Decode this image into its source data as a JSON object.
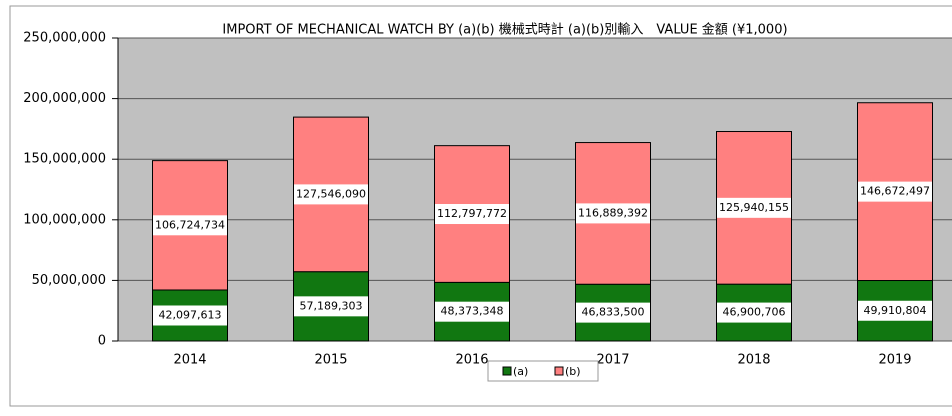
{
  "chart_data": {
    "type": "stacked_bar",
    "title": "IMPORT OF MECHANICAL WATCH BY (a)(b)  機械式時計 (a)(b)別輸入　VALUE 金額 (¥1,000)",
    "categories": [
      "2014",
      "2015",
      "2016",
      "2017",
      "2018",
      "2019"
    ],
    "series": [
      {
        "name": "(a)",
        "color": "#117711",
        "values": [
          42097613,
          57189303,
          48373348,
          46833500,
          46900706,
          49910804
        ],
        "value_labels": [
          "42,097,613",
          "57,189,303",
          "48,373,348",
          "46,833,500",
          "46,900,706",
          "49,910,804"
        ]
      },
      {
        "name": "(b)",
        "color": "#ff8080",
        "values": [
          106724734,
          127546090,
          112797772,
          116889392,
          125940155,
          146672497
        ],
        "value_labels": [
          "106,724,734",
          "127,546,090",
          "112,797,772",
          "116,889,392",
          "125,940,155",
          "146,672,497"
        ]
      }
    ],
    "ylim": [
      0,
      250000000
    ],
    "yticks": [
      {
        "value": 0,
        "label": "0"
      },
      {
        "value": 50000000,
        "label": "50,000,000"
      },
      {
        "value": 100000000,
        "label": "100,000,000"
      },
      {
        "value": 150000000,
        "label": "150,000,000"
      },
      {
        "value": 200000000,
        "label": "200,000,000"
      },
      {
        "value": 250000000,
        "label": "250,000,000"
      }
    ],
    "grid": true,
    "legend": "bottom"
  }
}
